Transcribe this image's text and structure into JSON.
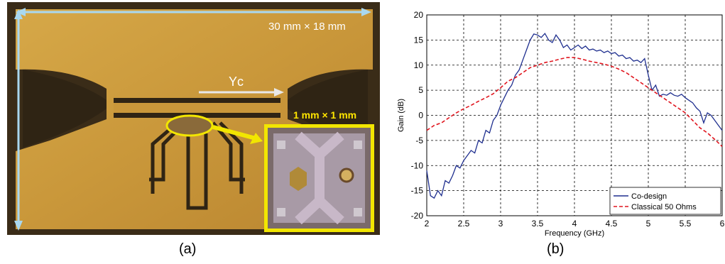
{
  "figure": {
    "panel_a": {
      "caption": "(a)",
      "board_size_label": "30 mm × 18 mm",
      "transistor_label": "Yc",
      "inset_size_label": "1 mm × 1 mm",
      "colors": {
        "copper": "#c9973a",
        "substrate": "#3a2c18",
        "inset_border": "#f2e600",
        "arrow": "#a9d8f0"
      }
    },
    "panel_b": {
      "caption": "(b)"
    }
  },
  "chart_data": {
    "type": "line",
    "xlabel": "Frequency (GHz)",
    "ylabel": "Gain (dB)",
    "xlim": [
      2,
      6
    ],
    "ylim": [
      -20,
      20
    ],
    "xticks": [
      2,
      2.5,
      3,
      3.5,
      4,
      4.5,
      5,
      5.5,
      6
    ],
    "xtick_labels": [
      "2",
      "2.5",
      "3",
      "3.5",
      "4",
      "4.5",
      "5",
      "5.5",
      "6"
    ],
    "yticks": [
      -20,
      -15,
      -10,
      -5,
      0,
      5,
      10,
      15,
      20
    ],
    "ytick_labels": [
      "-20",
      "-15",
      "-10",
      "-5",
      "0",
      "5",
      "10",
      "15",
      "20"
    ],
    "grid": true,
    "legend_position": "bottom-right",
    "series": [
      {
        "name": "Co-design",
        "color": "#1f2f8f",
        "style": "solid",
        "x": [
          2.0,
          2.05,
          2.1,
          2.15,
          2.2,
          2.25,
          2.3,
          2.35,
          2.4,
          2.45,
          2.5,
          2.55,
          2.6,
          2.65,
          2.7,
          2.75,
          2.8,
          2.85,
          2.9,
          2.95,
          3.0,
          3.05,
          3.1,
          3.15,
          3.2,
          3.25,
          3.3,
          3.35,
          3.4,
          3.45,
          3.5,
          3.55,
          3.6,
          3.65,
          3.7,
          3.75,
          3.8,
          3.85,
          3.9,
          3.95,
          4.0,
          4.05,
          4.1,
          4.15,
          4.2,
          4.25,
          4.3,
          4.35,
          4.4,
          4.45,
          4.5,
          4.55,
          4.6,
          4.65,
          4.7,
          4.75,
          4.8,
          4.85,
          4.9,
          4.95,
          5.0,
          5.05,
          5.1,
          5.15,
          5.2,
          5.25,
          5.3,
          5.35,
          5.4,
          5.45,
          5.5,
          5.55,
          5.6,
          5.65,
          5.7,
          5.75,
          5.8,
          5.85,
          5.9,
          5.95,
          6.0
        ],
        "y": [
          -11,
          -16,
          -16.5,
          -15,
          -16,
          -13,
          -13.5,
          -12,
          -10,
          -10.5,
          -9,
          -8,
          -7,
          -7.5,
          -5,
          -5.5,
          -3,
          -3.5,
          -1,
          0,
          2,
          3.5,
          5,
          6,
          8,
          9,
          11,
          13,
          15,
          16.2,
          16,
          15.5,
          16.3,
          15,
          14.5,
          16,
          15,
          13.5,
          14,
          13,
          13.5,
          14,
          13.3,
          13.8,
          13,
          13.2,
          12.8,
          13,
          12.5,
          12.8,
          12.3,
          12.5,
          11.8,
          12,
          11.3,
          11.5,
          10.8,
          11,
          10.5,
          11.3,
          8,
          5,
          6,
          3.8,
          4.2,
          4,
          4.5,
          4,
          3.8,
          4.2,
          3.5,
          3,
          2.5,
          1.5,
          0.8,
          -1.5,
          0.5,
          0,
          -1,
          -2,
          -3
        ]
      },
      {
        "name": "Classical 50 Ohms",
        "color": "#e0151e",
        "style": "dashed",
        "x": [
          2.0,
          2.1,
          2.2,
          2.3,
          2.4,
          2.5,
          2.6,
          2.7,
          2.8,
          2.9,
          3.0,
          3.1,
          3.2,
          3.3,
          3.4,
          3.5,
          3.6,
          3.7,
          3.8,
          3.9,
          4.0,
          4.1,
          4.2,
          4.3,
          4.4,
          4.5,
          4.6,
          4.7,
          4.8,
          4.9,
          5.0,
          5.1,
          5.2,
          5.3,
          5.4,
          5.5,
          5.6,
          5.7,
          5.8,
          5.9,
          6.0
        ],
        "y": [
          -3,
          -2,
          -1.5,
          -0.5,
          0.5,
          1.3,
          2,
          2.8,
          3.5,
          4.3,
          5.5,
          6.8,
          7.5,
          8.5,
          9.5,
          10,
          10.5,
          10.8,
          11.2,
          11.5,
          11.5,
          11.2,
          10.8,
          10.5,
          10.2,
          9.8,
          9.2,
          8.5,
          7.5,
          6.5,
          5.5,
          4.5,
          3.5,
          2.5,
          1.5,
          0.5,
          -1,
          -2.5,
          -3.5,
          -4.8,
          -6.2
        ]
      }
    ]
  }
}
